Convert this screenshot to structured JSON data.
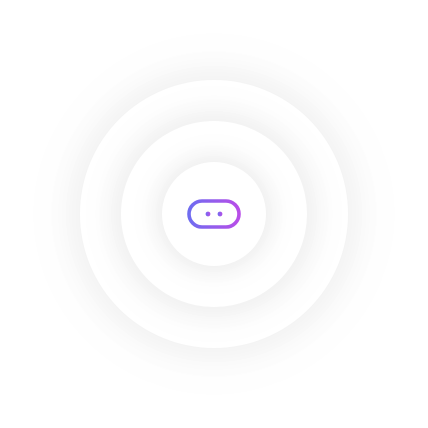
{
  "center_icon": {
    "name": "logo-icon",
    "gradient": [
      "#6f6cf0",
      "#b84de8"
    ]
  },
  "background_color": "#ffffff"
}
